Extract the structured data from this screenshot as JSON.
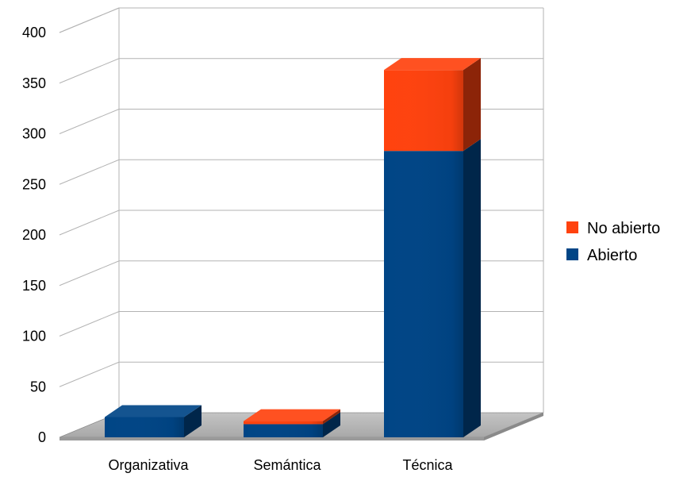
{
  "chart_data": {
    "type": "bar",
    "stacked": true,
    "three_d": true,
    "categories": [
      "Organizativa",
      "Semántica",
      "Técnica"
    ],
    "series": [
      {
        "name": "Abierto",
        "values": [
          20,
          13,
          283
        ],
        "color": "#004586"
      },
      {
        "name": "No abierto",
        "values": [
          0,
          3,
          80
        ],
        "color": "#ff420e"
      }
    ],
    "yticks": [
      0,
      50,
      100,
      150,
      200,
      250,
      300,
      350,
      400
    ],
    "ylim": [
      0,
      400
    ],
    "grid": true,
    "legend": {
      "position": "right",
      "items": [
        {
          "label": "No abierto",
          "color": "#ff420e"
        },
        {
          "label": "Abierto",
          "color": "#004586"
        }
      ]
    },
    "floor_color": "#b3b3b3",
    "grid_color": "#b3b3b3"
  }
}
